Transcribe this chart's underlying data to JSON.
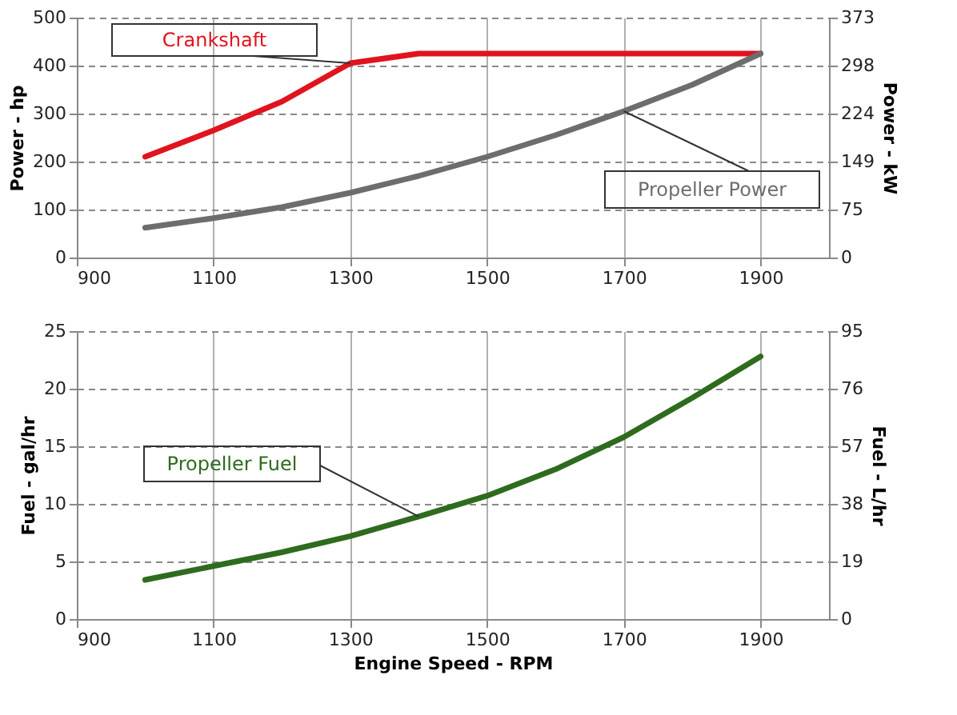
{
  "chart_data": [
    {
      "type": "line",
      "ylabel": "Power - hp",
      "y2label": "Power - kW",
      "x": [
        1000,
        1100,
        1200,
        1300,
        1400,
        1500,
        1600,
        1700,
        1800,
        1900
      ],
      "series": [
        {
          "name": "Crankshaft",
          "color": "#e0141e",
          "values": [
            210,
            265,
            325,
            405,
            425,
            425,
            425,
            425,
            425,
            425
          ]
        },
        {
          "name": "Propeller Power",
          "color": "#6d6d6d",
          "values": [
            62,
            82,
            105,
            135,
            170,
            210,
            255,
            305,
            360,
            425
          ]
        }
      ],
      "xlim": [
        900,
        2000
      ],
      "xticks": [
        900,
        1100,
        1300,
        1500,
        1700,
        1900
      ],
      "ylim": [
        0,
        500
      ],
      "yticks": [
        0,
        100,
        200,
        300,
        400,
        500
      ],
      "y2lim": [
        0,
        373
      ],
      "y2ticks": [
        0,
        75,
        149,
        224,
        298,
        373
      ],
      "grid": true
    },
    {
      "type": "line",
      "xlabel": "Engine Speed - RPM",
      "ylabel": "Fuel - gal/hr",
      "y2label": "Fuel - L/hr",
      "x": [
        1000,
        1100,
        1200,
        1300,
        1400,
        1500,
        1600,
        1700,
        1800,
        1900
      ],
      "series": [
        {
          "name": "Propeller Fuel",
          "color": "#2e6b1e",
          "values": [
            3.4,
            4.6,
            5.8,
            7.2,
            8.9,
            10.7,
            13.0,
            15.8,
            19.2,
            22.8
          ]
        }
      ],
      "xlim": [
        900,
        2000
      ],
      "xticks": [
        900,
        1100,
        1300,
        1500,
        1700,
        1900
      ],
      "ylim": [
        0,
        25
      ],
      "yticks": [
        0,
        5,
        10,
        15,
        20,
        25
      ],
      "y2lim": [
        0,
        95
      ],
      "y2ticks": [
        0,
        19,
        38,
        57,
        76,
        95
      ],
      "grid": true
    }
  ]
}
